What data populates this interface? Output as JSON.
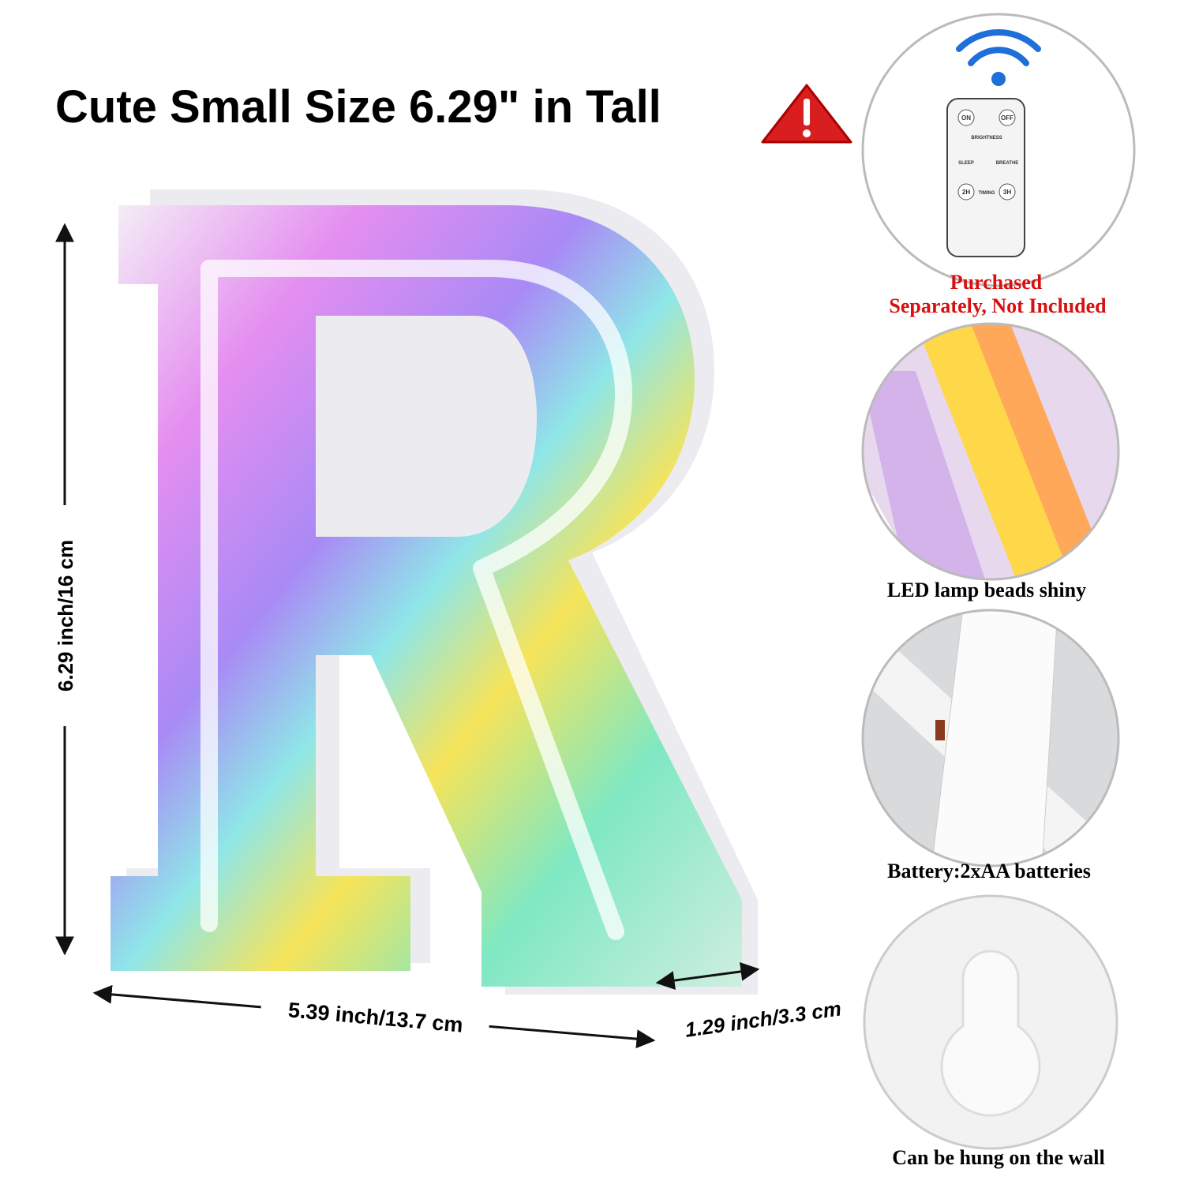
{
  "title": "Cute Small Size 6.29\" in Tall",
  "dimensions": {
    "height": "6.29 inch/16 cm",
    "width": "5.39 inch/13.7 cm",
    "depth": "1.29 inch/3.3 cm"
  },
  "remote": {
    "buttons": [
      "ON",
      "OFF",
      "BRIGHTNESS",
      "SLEEP",
      "BREATHE",
      "2H",
      "TIMING",
      "3H"
    ],
    "note": [
      "Purchased",
      "Separately, Not Included"
    ]
  },
  "features": [
    "LED lamp beads shiny",
    "Battery:2xAA batteries",
    "Can be hung on the wall"
  ]
}
